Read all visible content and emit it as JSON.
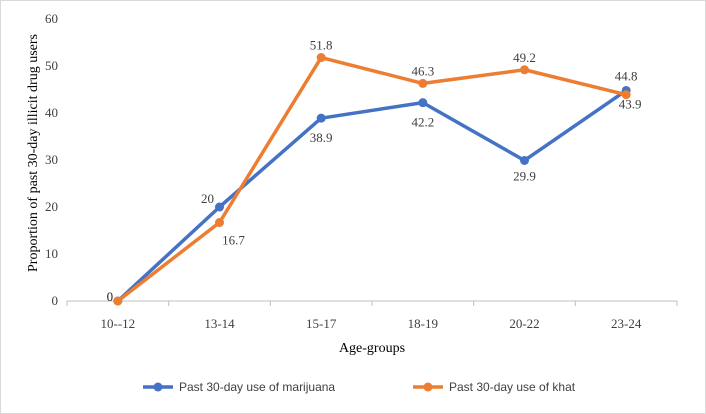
{
  "chart_data": {
    "type": "line",
    "categories": [
      "10--12",
      "13-14",
      "15-17",
      "18-19",
      "20-22",
      "23-24"
    ],
    "series": [
      {
        "name": "Past 30-day use of marijuana",
        "values": [
          0,
          20,
          38.9,
          42.2,
          29.9,
          44.8
        ],
        "labels": [
          "0",
          "20",
          "38.9",
          "42.2",
          "29.9",
          "44.8"
        ],
        "color": "#4472c4"
      },
      {
        "name": "Past 30-day use of khat",
        "values": [
          0,
          16.7,
          51.8,
          46.3,
          49.2,
          43.9
        ],
        "labels": [
          "0",
          "16.7",
          "51.8",
          "46.3",
          "49.2",
          "43.9"
        ],
        "color": "#ed7d31"
      }
    ],
    "title": "",
    "xlabel": "Age-groups",
    "ylabel": "Proportion of past 30-day illicit drug users",
    "ylim": [
      0,
      60
    ],
    "yticks": [
      0,
      10,
      20,
      30,
      40,
      50,
      60
    ],
    "grid": false,
    "legend_position": "bottom"
  }
}
